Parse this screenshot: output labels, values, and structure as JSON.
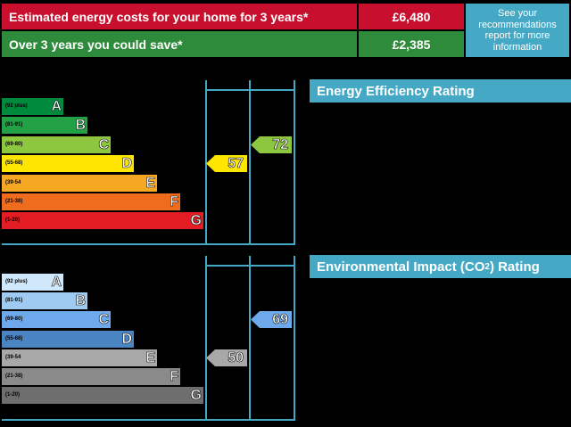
{
  "costs": {
    "row1_label": "Estimated energy costs for your home for 3 years*",
    "row1_value": "£6,480",
    "row2_label": "Over 3 years you could save*",
    "row2_value": "£2,385",
    "see_line1": "See your",
    "see_line2": "recommendations",
    "see_line3": "report for more",
    "see_line4": "information"
  },
  "colors": {
    "accent": "#45a9c6",
    "red": "#c8102e",
    "green": "#2e8b3c"
  },
  "chart_data": [
    {
      "type": "bar",
      "title": "Energy Efficiency Rating",
      "bands": [
        {
          "letter": "A",
          "range": "(92 plus)",
          "color": "#008a3e"
        },
        {
          "letter": "B",
          "range": "(81-91)",
          "color": "#23a146"
        },
        {
          "letter": "C",
          "range": "(69-80)",
          "color": "#8dc63f"
        },
        {
          "letter": "D",
          "range": "(55-68)",
          "color": "#ffe600"
        },
        {
          "letter": "E",
          "range": "(39-54",
          "color": "#f7a823"
        },
        {
          "letter": "F",
          "range": "(21-38)",
          "color": "#ef6c1f"
        },
        {
          "letter": "G",
          "range": "(1-20)",
          "color": "#e31d23"
        }
      ],
      "current": 57,
      "current_band": "D",
      "potential": 72,
      "potential_band": "C"
    },
    {
      "type": "bar",
      "title_pre": "Environmental Impact (CO",
      "title_sub": "2",
      "title_post": ") Rating",
      "bands": [
        {
          "letter": "A",
          "range": "(92 plus)",
          "color": "#cfe8fb"
        },
        {
          "letter": "B",
          "range": "(81-91)",
          "color": "#9fcbf2"
        },
        {
          "letter": "C",
          "range": "(69-80)",
          "color": "#6ea9ec"
        },
        {
          "letter": "D",
          "range": "(55-68)",
          "color": "#4b84c3"
        },
        {
          "letter": "E",
          "range": "(39-54",
          "color": "#a8a8a8"
        },
        {
          "letter": "F",
          "range": "(21-38)",
          "color": "#8a8a8a"
        },
        {
          "letter": "G",
          "range": "(1-20)",
          "color": "#6e6e6e"
        }
      ],
      "current": 50,
      "current_band": "E",
      "potential": 69,
      "potential_band": "C"
    }
  ]
}
